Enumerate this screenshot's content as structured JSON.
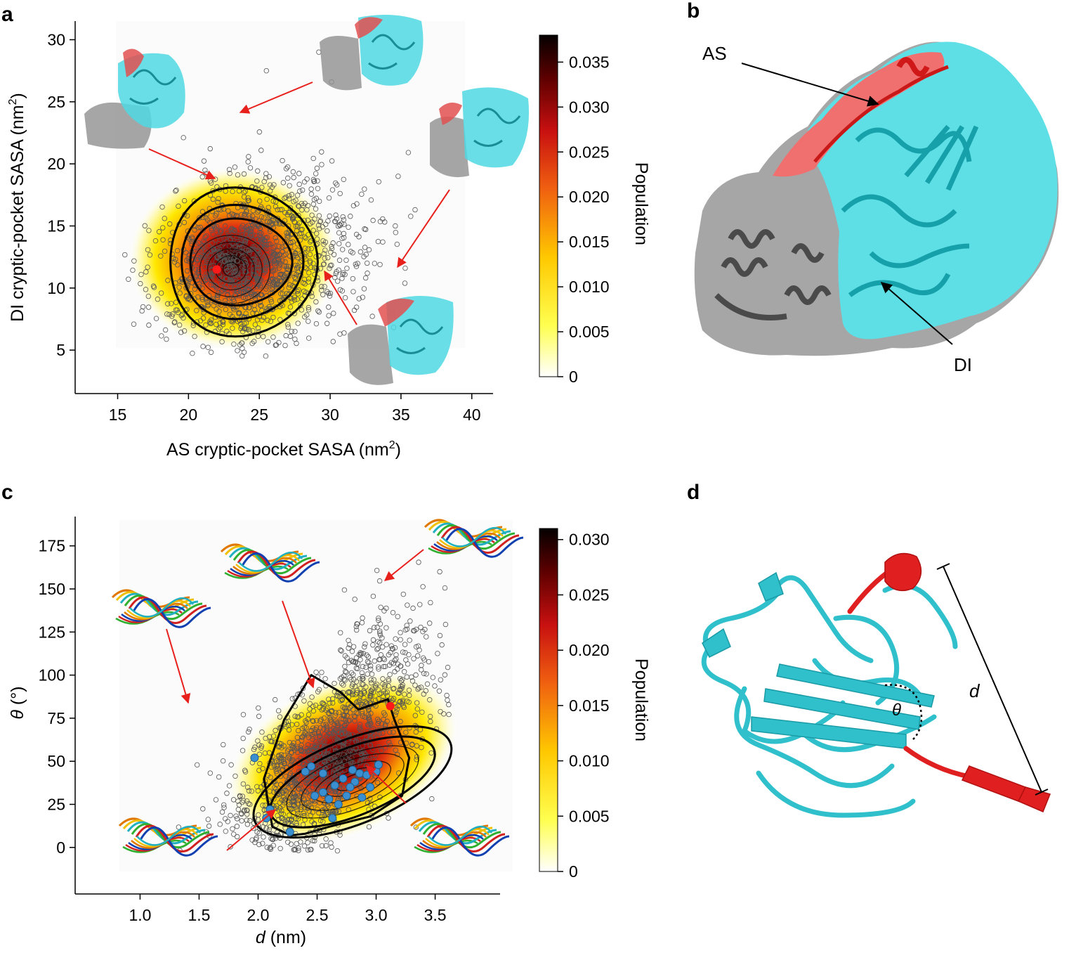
{
  "panels": {
    "a": {
      "letter": "a"
    },
    "b": {
      "letter": "b",
      "label_as": "AS",
      "label_di": "DI"
    },
    "c": {
      "letter": "c"
    },
    "d": {
      "letter": "d",
      "label_theta": "θ",
      "label_d": "d"
    }
  },
  "chart_data": [
    {
      "id": "a",
      "type": "scatter",
      "title": "",
      "xlabel_main": "AS cryptic-pocket SASA (nm",
      "xlabel_sup": "2",
      "xlabel_end": ")",
      "ylabel_main": "DI cryptic-pocket SASA (nm",
      "ylabel_sup": "2",
      "ylabel_end": ")",
      "xlim": [
        12,
        41.5
      ],
      "ylim": [
        1.5,
        31.5
      ],
      "xticks": [
        15,
        20,
        25,
        30,
        35,
        40
      ],
      "yticks": [
        5,
        10,
        15,
        20,
        25,
        30
      ],
      "density_center": [
        23,
        11.8
      ],
      "contours": {
        "center": [
          23,
          11.5
        ],
        "radii": [
          [
            5.2,
            6.0
          ],
          [
            4.3,
            4.6
          ],
          [
            3.6,
            3.5
          ]
        ]
      },
      "highlight_point": {
        "x": 22,
        "y": 11.5,
        "color": "#ff1a1a"
      },
      "outlier_points": [
        [
          29.2,
          29.0
        ],
        [
          17.0,
          11.3
        ],
        [
          35.3,
          11.6
        ],
        [
          34.8,
          19.0
        ],
        [
          30.1,
          26.6
        ],
        [
          25.5,
          27.5
        ]
      ],
      "colorbar": {
        "label": "Population",
        "ticks": [
          "0",
          "0.005",
          "0.010",
          "0.015",
          "0.020",
          "0.025",
          "0.030",
          "0.035"
        ],
        "max": 0.038
      }
    },
    {
      "id": "c",
      "type": "scatter",
      "title": "",
      "xlabel_sym": "d",
      "xlabel_rest": " (nm)",
      "ylabel_sym": "θ",
      "ylabel_rest": " (°)",
      "xlim": [
        0.45,
        4.05
      ],
      "ylim": [
        -27,
        192
      ],
      "xticks": [
        1.0,
        1.5,
        2.0,
        2.5,
        3.0,
        3.5
      ],
      "ytick_values": [
        0,
        25,
        50,
        75,
        100,
        125,
        150,
        175
      ],
      "ytick_labels": [
        "0",
        "25",
        "50",
        "75",
        "100",
        "125",
        "150",
        "175"
      ],
      "highlight_point": {
        "x": 3.12,
        "y": 82,
        "color": "#ff1a1a"
      },
      "blue_points": [
        {
          "x": 1.97,
          "y": 52
        },
        {
          "x": 2.1,
          "y": 22
        },
        {
          "x": 2.07,
          "y": 17
        },
        {
          "x": 2.27,
          "y": 9
        },
        {
          "x": 2.4,
          "y": 44
        },
        {
          "x": 2.45,
          "y": 47
        },
        {
          "x": 2.48,
          "y": 30
        },
        {
          "x": 2.55,
          "y": 32
        },
        {
          "x": 2.6,
          "y": 28
        },
        {
          "x": 2.65,
          "y": 36
        },
        {
          "x": 2.68,
          "y": 25
        },
        {
          "x": 2.72,
          "y": 40
        },
        {
          "x": 2.75,
          "y": 30
        },
        {
          "x": 2.8,
          "y": 45
        },
        {
          "x": 2.82,
          "y": 38
        },
        {
          "x": 2.86,
          "y": 43
        },
        {
          "x": 2.88,
          "y": 29
        },
        {
          "x": 2.92,
          "y": 42
        },
        {
          "x": 2.95,
          "y": 35
        },
        {
          "x": 3.0,
          "y": 44
        },
        {
          "x": 3.02,
          "y": 48
        },
        {
          "x": 2.63,
          "y": 17
        },
        {
          "x": 2.55,
          "y": 43
        },
        {
          "x": 2.78,
          "y": 35
        }
      ],
      "colorbar": {
        "label": "Population",
        "ticks": [
          "0",
          "0.005",
          "0.010",
          "0.015",
          "0.020",
          "0.025",
          "0.030"
        ],
        "max": 0.031
      }
    }
  ],
  "colors": {
    "cyan": "#3cc8d2",
    "red_region": "#e23030",
    "gray_region": "#8c8c8c",
    "arrow_red": "#e8201c",
    "blue_point": "#3a8fd0"
  }
}
